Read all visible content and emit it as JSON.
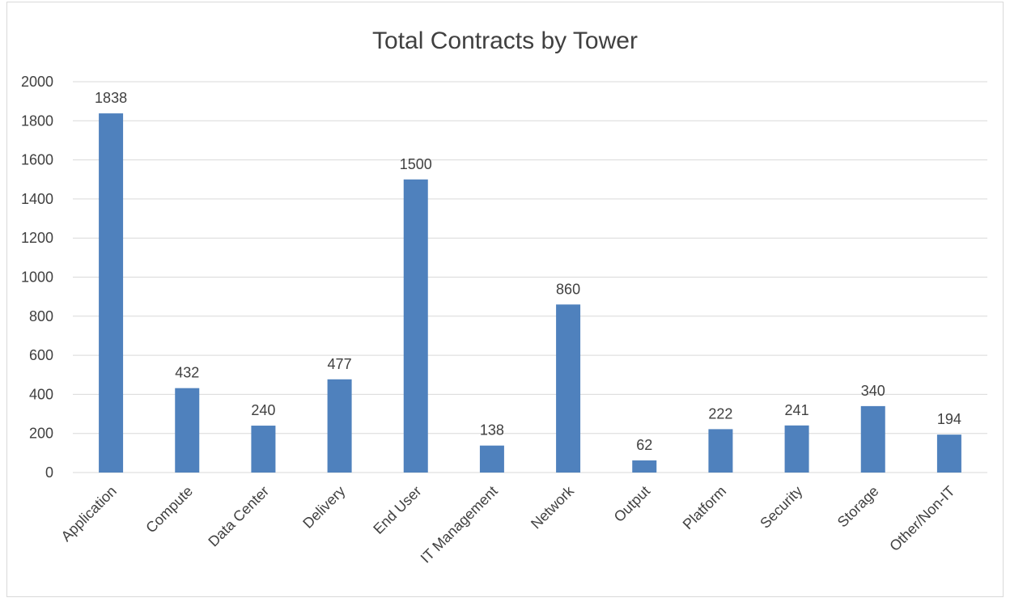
{
  "chart_data": {
    "type": "bar",
    "title": "Total Contracts by Tower",
    "xlabel": "",
    "ylabel": "",
    "categories": [
      "Application",
      "Compute",
      "Data Center",
      "Delivery",
      "End User",
      "IT Management",
      "Network",
      "Output",
      "Platform",
      "Security",
      "Storage",
      "Other/Non-IT"
    ],
    "values": [
      1838,
      432,
      240,
      477,
      1500,
      138,
      860,
      62,
      222,
      241,
      340,
      194
    ],
    "ylim": [
      0,
      2000
    ],
    "yticks": [
      0,
      200,
      400,
      600,
      800,
      1000,
      1200,
      1400,
      1600,
      1800,
      2000
    ],
    "grid": true,
    "legend": "none",
    "data_labels": true,
    "colors": {
      "bar": "#4f81bd",
      "grid": "#d9d9d9",
      "text": "#404040"
    }
  }
}
